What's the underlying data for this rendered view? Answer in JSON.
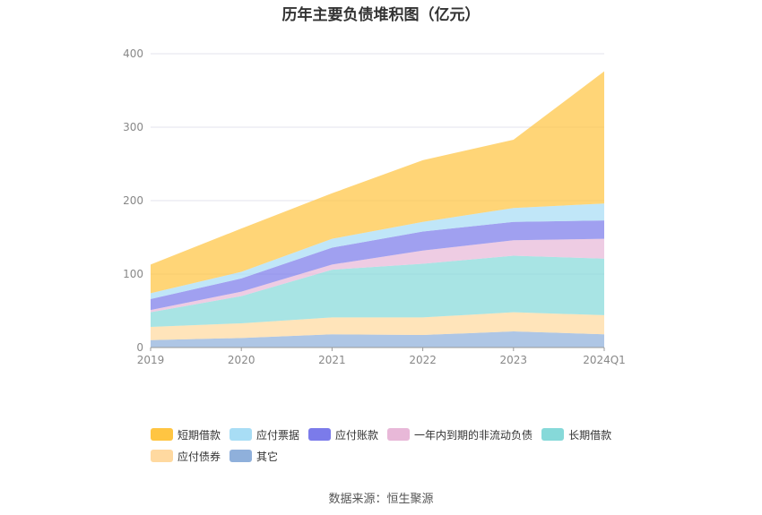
{
  "chart_data": {
    "type": "area",
    "stacked": true,
    "title": "历年主要负债堆积图（亿元）",
    "categories": [
      "2019",
      "2020",
      "2021",
      "2022",
      "2023",
      "2024Q1"
    ],
    "ylim": [
      0,
      400
    ],
    "yticks": [
      "0",
      "100",
      "200",
      "300",
      "400"
    ],
    "grid": true,
    "legend_position": "bottom",
    "series": [
      {
        "name": "其它",
        "color": "#8fb0db",
        "values": [
          10,
          13,
          18,
          17,
          22,
          18
        ]
      },
      {
        "name": "应付债券",
        "color": "#ffd9a0",
        "values": [
          18,
          20,
          23,
          24,
          26,
          26
        ]
      },
      {
        "name": "长期借款",
        "color": "#86d9d9",
        "values": [
          20,
          37,
          65,
          73,
          77,
          77
        ]
      },
      {
        "name": "一年内到期的非流动负债",
        "color": "#e8b8d8",
        "values": [
          3,
          6,
          7,
          18,
          21,
          27
        ]
      },
      {
        "name": "应付账款",
        "color": "#7b7bea",
        "values": [
          15,
          18,
          23,
          26,
          25,
          25
        ]
      },
      {
        "name": "应付票据",
        "color": "#a8ddf5",
        "values": [
          8,
          9,
          12,
          13,
          19,
          23
        ]
      },
      {
        "name": "短期借款",
        "color": "#ffc542",
        "values": [
          39,
          59,
          62,
          84,
          93,
          180
        ]
      }
    ],
    "legend_order": [
      "短期借款",
      "应付票据",
      "应付账款",
      "一年内到期的非流动负债",
      "长期借款",
      "应付债券",
      "其它"
    ]
  },
  "legend": {
    "items": [
      {
        "label": "短期借款",
        "color": "#ffc542"
      },
      {
        "label": "应付票据",
        "color": "#a8ddf5"
      },
      {
        "label": "应付账款",
        "color": "#7b7bea"
      },
      {
        "label": "一年内到期的非流动负债",
        "color": "#e8b8d8"
      },
      {
        "label": "长期借款",
        "color": "#86d9d9"
      },
      {
        "label": "应付债券",
        "color": "#ffd9a0"
      },
      {
        "label": "其它",
        "color": "#8fb0db"
      }
    ]
  },
  "footer": {
    "source": "数据来源：恒生聚源"
  }
}
